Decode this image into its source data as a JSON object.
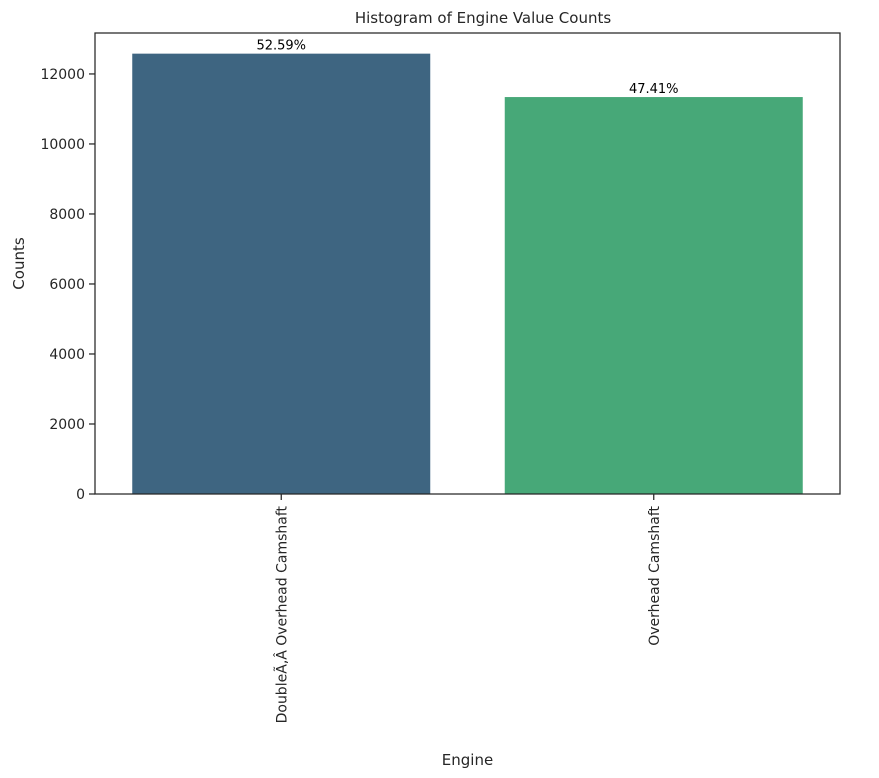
{
  "chart_data": {
    "type": "bar",
    "title": "Histogram of Engine Value Counts",
    "xlabel": "Engine",
    "ylabel": "Counts",
    "categories": [
      "DoubleÃ‚Â Overhead Camshaft",
      "Overhead Camshaft"
    ],
    "values": [
      12580,
      11340
    ],
    "percent_labels": [
      "52.59%",
      "47.41%"
    ],
    "bar_colors": [
      "#3e6581",
      "#47a878"
    ],
    "ylim": [
      0,
      13170
    ],
    "yticks": [
      0,
      2000,
      4000,
      6000,
      8000,
      10000,
      12000
    ],
    "grid": false,
    "legend": "none"
  }
}
